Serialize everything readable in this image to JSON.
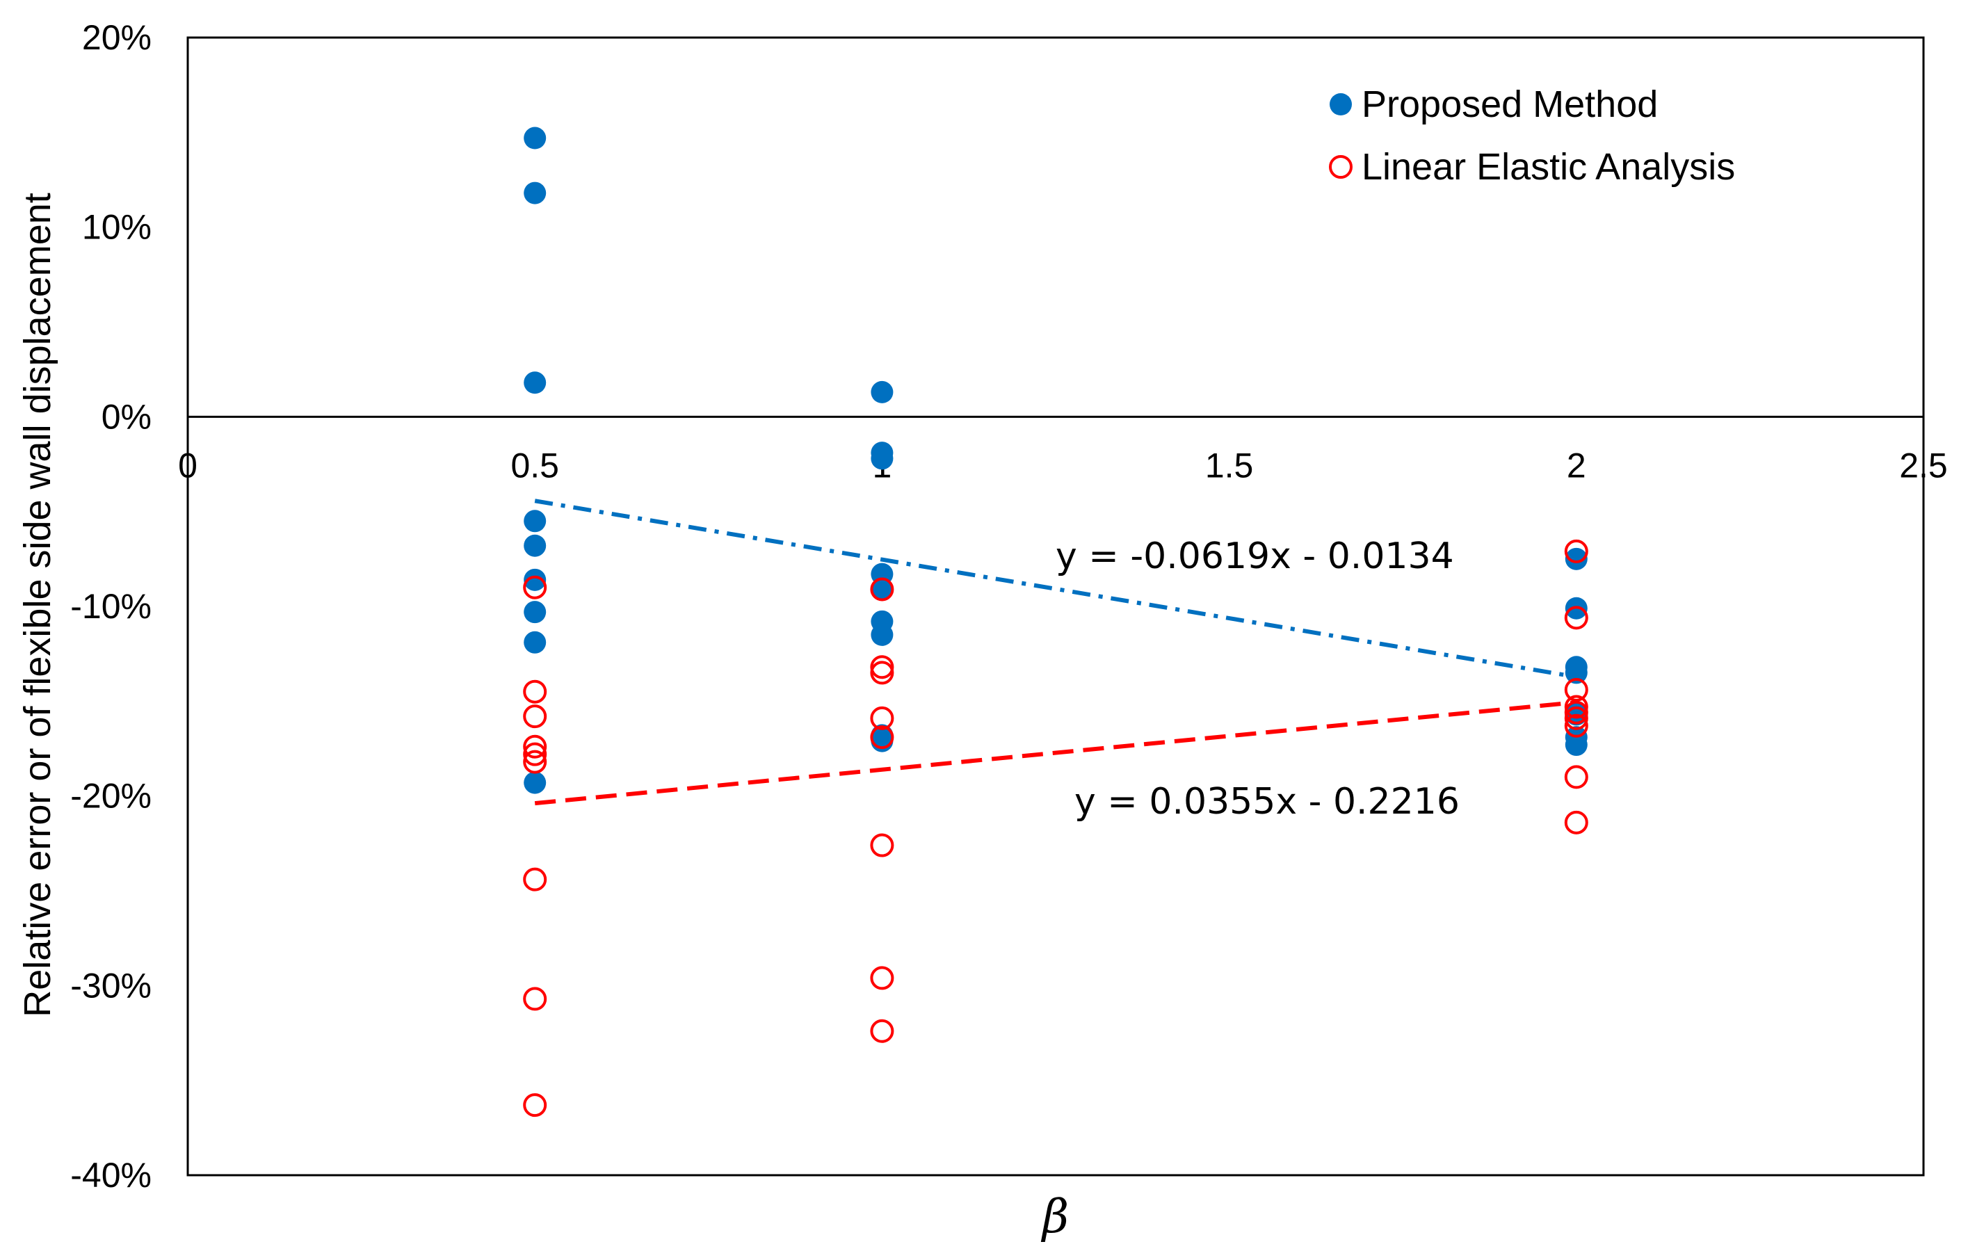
{
  "chart_data": {
    "type": "scatter",
    "title": "",
    "xlabel": "β",
    "ylabel": "Relative error or of flexible side wall displacement",
    "xlim": [
      0,
      2.5
    ],
    "ylim": [
      -0.4,
      0.2
    ],
    "x_ticks": [
      0,
      0.5,
      1,
      1.5,
      2,
      2.5
    ],
    "x_tick_labels": [
      "0",
      "0.5",
      "1",
      "1.5",
      "2",
      "2.5"
    ],
    "y_ticks": [
      0.2,
      0.1,
      0,
      -0.1,
      -0.2,
      -0.3,
      -0.4
    ],
    "y_tick_labels": [
      "20%",
      "10%",
      "0%",
      "-10%",
      "-20%",
      "-30%",
      "-40%"
    ],
    "legend_position": "top-right",
    "series": [
      {
        "name": "Proposed Method",
        "marker": "filled-circle",
        "color": "#0070C0",
        "points": [
          [
            0.5,
            0.147
          ],
          [
            0.5,
            0.118
          ],
          [
            0.5,
            0.018
          ],
          [
            0.5,
            -0.055
          ],
          [
            0.5,
            -0.068
          ],
          [
            0.5,
            -0.086
          ],
          [
            0.5,
            -0.103
          ],
          [
            0.5,
            -0.119
          ],
          [
            0.5,
            -0.193
          ],
          [
            1,
            0.013
          ],
          [
            1,
            -0.019
          ],
          [
            1,
            -0.022
          ],
          [
            1,
            -0.083
          ],
          [
            1,
            -0.091
          ],
          [
            1,
            -0.108
          ],
          [
            1,
            -0.115
          ],
          [
            1,
            -0.168
          ],
          [
            1,
            -0.171
          ],
          [
            2,
            -0.075
          ],
          [
            2,
            -0.101
          ],
          [
            2,
            -0.132
          ],
          [
            2,
            -0.135
          ],
          [
            2,
            -0.157
          ],
          [
            2,
            -0.169
          ],
          [
            2,
            -0.173
          ]
        ]
      },
      {
        "name": "Linear Elastic Analysis",
        "marker": "open-circle",
        "color": "#FF0000",
        "points": [
          [
            0.5,
            -0.09
          ],
          [
            0.5,
            -0.145
          ],
          [
            0.5,
            -0.158
          ],
          [
            0.5,
            -0.174
          ],
          [
            0.5,
            -0.178
          ],
          [
            0.5,
            -0.182
          ],
          [
            0.5,
            -0.244
          ],
          [
            0.5,
            -0.307
          ],
          [
            0.5,
            -0.363
          ],
          [
            1,
            -0.091
          ],
          [
            1,
            -0.132
          ],
          [
            1,
            -0.135
          ],
          [
            1,
            -0.159
          ],
          [
            1,
            -0.169
          ],
          [
            1,
            -0.226
          ],
          [
            1,
            -0.296
          ],
          [
            1,
            -0.324
          ],
          [
            2,
            -0.071
          ],
          [
            2,
            -0.106
          ],
          [
            2,
            -0.144
          ],
          [
            2,
            -0.153
          ],
          [
            2,
            -0.156
          ],
          [
            2,
            -0.159
          ],
          [
            2,
            -0.163
          ],
          [
            2,
            -0.19
          ],
          [
            2,
            -0.214
          ]
        ]
      }
    ],
    "trendlines": [
      {
        "series": "Proposed Method",
        "equation": "y = -0.0619x - 0.0134",
        "slope": -0.0619,
        "intercept": -0.0134,
        "x_range": [
          0.5,
          2
        ],
        "style": "dash-dot",
        "color": "#0070C0"
      },
      {
        "series": "Linear Elastic Analysis",
        "equation": "y = 0.0355x - 0.2216",
        "slope": 0.0355,
        "intercept": -0.2216,
        "x_range": [
          0.5,
          2
        ],
        "style": "dashed",
        "color": "#FF0000"
      }
    ]
  }
}
